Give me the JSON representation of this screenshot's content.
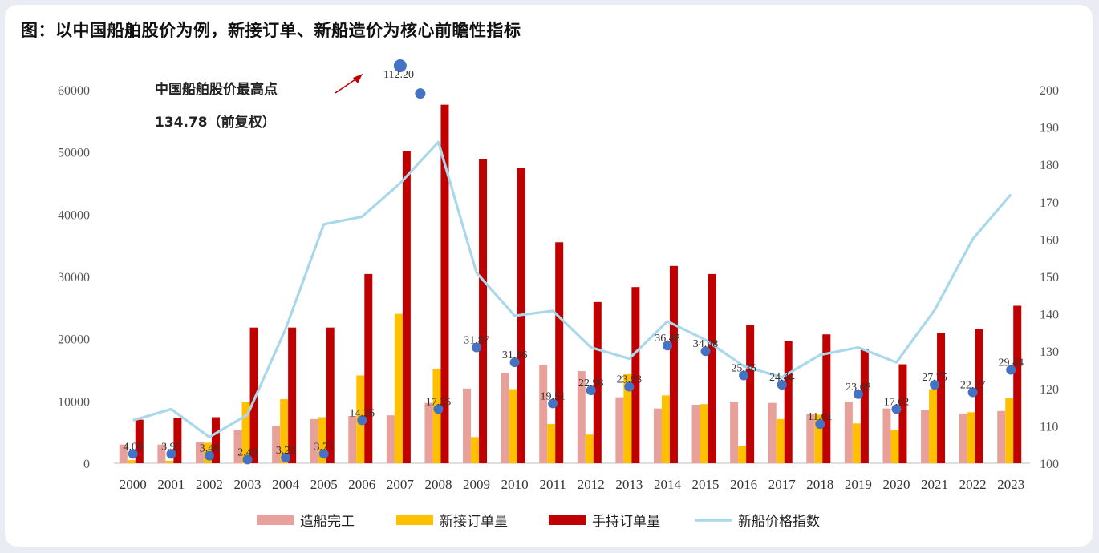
{
  "page": {
    "title": "图：以中国船舶股价为例，新接订单、新船造价为核心前瞻性指标"
  },
  "chart_data": {
    "type": "bar",
    "categories": [
      "2000",
      "2001",
      "2002",
      "2003",
      "2004",
      "2005",
      "2006",
      "2007",
      "2008",
      "2009",
      "2010",
      "2011",
      "2012",
      "2013",
      "2014",
      "2015",
      "2016",
      "2017",
      "2018",
      "2019",
      "2020",
      "2021",
      "2022",
      "2023"
    ],
    "left_axis": {
      "ylim": [
        0,
        60000
      ],
      "ticks": [
        "0",
        "10000",
        "20000",
        "30000",
        "40000",
        "50000",
        "60000"
      ]
    },
    "right_axis": {
      "ylim": [
        100,
        200
      ],
      "ticks": [
        "100",
        "110",
        "120",
        "130",
        "140",
        "150",
        "160",
        "170",
        "180",
        "190",
        "200"
      ]
    },
    "series": [
      {
        "name": "造船完工",
        "kind": "bar",
        "axis": "left",
        "color": "#e8a09a",
        "values": [
          3000,
          3000,
          3400,
          5300,
          6000,
          7100,
          7600,
          7700,
          9700,
          12000,
          14500,
          15800,
          14800,
          10600,
          8800,
          9400,
          9900,
          9700,
          7900,
          9900,
          8800,
          8500,
          8000,
          8400
        ]
      },
      {
        "name": "新接订单量",
        "kind": "bar",
        "axis": "left",
        "color": "#ffc000",
        "values": [
          500,
          400,
          3300,
          9800,
          10300,
          7400,
          14100,
          24000,
          15200,
          4200,
          11900,
          6300,
          4600,
          14300,
          10900,
          9500,
          2800,
          7100,
          7800,
          6400,
          5400,
          11900,
          8200,
          10500
        ]
      },
      {
        "name": "手持订单量",
        "kind": "bar",
        "axis": "left",
        "color": "#c00000",
        "values": [
          7000,
          7300,
          7400,
          21800,
          21800,
          21800,
          30400,
          50100,
          57600,
          48800,
          47400,
          35500,
          25900,
          28300,
          31700,
          30400,
          22200,
          19600,
          20700,
          18400,
          15900,
          20900,
          21500,
          25300
        ]
      },
      {
        "name": "新船价格指数",
        "kind": "line",
        "axis": "right",
        "color": "#a8d8ea",
        "values": [
          111.5,
          114.5,
          107,
          113,
          136,
          164,
          166,
          175,
          186,
          151,
          139.5,
          140.8,
          131,
          128,
          138,
          133,
          126,
          123,
          129,
          131,
          127,
          141,
          160,
          172
        ]
      },
      {
        "name": "",
        "kind": "scatter",
        "axis": "right",
        "color": "#4472c4",
        "values": [
          102.5,
          102.5,
          102,
          101,
          101.5,
          102.5,
          111.5,
          null,
          114.5,
          131,
          127,
          116,
          119.5,
          120.5,
          131.5,
          130,
          123.5,
          121,
          110.5,
          118.5,
          114.5,
          121,
          119,
          125
        ],
        "labels": [
          "4.00",
          "3.95",
          "3.48",
          "2.40",
          "3.28",
          "3.71",
          "14.26",
          "",
          "17.35",
          "31.87",
          "31.66",
          "19.51",
          "22.98",
          "23.93",
          "36.48",
          "34.48",
          "25.36",
          "24.44",
          "11.01",
          "23.68",
          "17.62",
          "27.75",
          "22.27",
          "29.44"
        ]
      },
      {
        "name": "",
        "kind": "scatter",
        "axis": "right",
        "color": "#4472c4",
        "note": "2007 points above the axis max",
        "values": [
          null,
          null,
          null,
          null,
          null,
          null,
          null,
          199,
          null,
          null,
          null,
          null,
          null,
          null,
          null,
          null,
          null,
          null,
          null,
          null,
          null,
          null,
          null,
          null
        ]
      }
    ],
    "annotations": [
      {
        "text_line1": "中国船舶股价最高点",
        "text_line2": "134.78（前复权）",
        "highlight_label": "112.20"
      }
    ],
    "legend": {
      "placement": "bottom",
      "items": [
        {
          "name": "造船完工",
          "kind": "bar",
          "color": "#e8a09a"
        },
        {
          "name": "新接订单量",
          "kind": "bar",
          "color": "#ffc000"
        },
        {
          "name": "手持订单量",
          "kind": "bar",
          "color": "#c00000"
        },
        {
          "name": "新船价格指数",
          "kind": "line",
          "color": "#a8d8ea"
        }
      ]
    }
  }
}
